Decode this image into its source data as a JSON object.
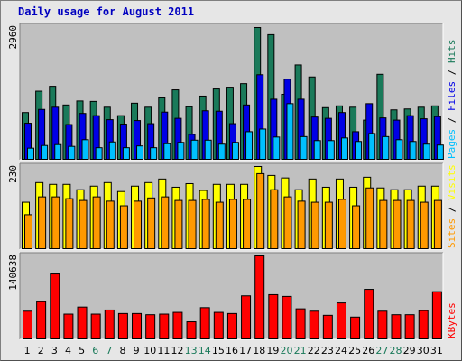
{
  "title": "Daily usage for August 2011",
  "colors": {
    "hits": "#1a7a5a",
    "files": "#0000e6",
    "pages": "#00c0ff",
    "visits": "#ffff00",
    "sites": "#ff9900",
    "kbytes": "#ff0000",
    "weekend_label": "#1a7a5a",
    "weekday_label": "#000000",
    "panel_bg": "#c0c0c0"
  },
  "legend": {
    "hits": "Hits",
    "files": "Files",
    "pages": "Pages",
    "visits": "Visits",
    "sites": "Sites",
    "kbytes": "KBytes",
    "sep": "/"
  },
  "chart_data": {
    "type": "bar",
    "title": "Daily usage for August 2011",
    "categories": [
      "1",
      "2",
      "3",
      "4",
      "5",
      "6",
      "7",
      "8",
      "9",
      "10",
      "11",
      "12",
      "13",
      "14",
      "15",
      "16",
      "17",
      "18",
      "19",
      "20",
      "21",
      "22",
      "23",
      "24",
      "25",
      "26",
      "27",
      "28",
      "29",
      "30",
      "31"
    ],
    "weekend_days": [
      "6",
      "7",
      "13",
      "14",
      "20",
      "21",
      "27",
      "28"
    ],
    "panels": [
      {
        "id": "top",
        "max_label": "2960",
        "ymax": 2960,
        "series": [
          {
            "name": "Hits",
            "values": [
              1050,
              1530,
              1640,
              1220,
              1310,
              1300,
              1170,
              980,
              1260,
              1170,
              1380,
              1560,
              1180,
              1420,
              1580,
              1620,
              1700,
              2960,
              2800,
              1460,
              2120,
              1850,
              1160,
              1200,
              1170,
              880,
              1910,
              1110,
              1130,
              1170,
              1200
            ]
          },
          {
            "name": "Files",
            "values": [
              810,
              1120,
              1170,
              780,
              1030,
              980,
              890,
              790,
              870,
              800,
              1060,
              920,
              560,
              1090,
              1080,
              800,
              1220,
              1900,
              1350,
              1800,
              1350,
              950,
              920,
              1050,
              620,
              1250,
              930,
              880,
              980,
              910,
              960
            ]
          },
          {
            "name": "Pages",
            "values": [
              250,
              310,
              330,
              290,
              440,
              260,
              390,
              260,
              300,
              260,
              350,
              380,
              430,
              430,
              340,
              380,
              620,
              680,
              500,
              1250,
              510,
              420,
              420,
              480,
              400,
              580,
              510,
              440,
              400,
              340,
              320
            ]
          }
        ]
      },
      {
        "id": "middle",
        "max_label": "230",
        "ymax": 230,
        "series": [
          {
            "name": "Visits",
            "values": [
              130,
              185,
              180,
              180,
              165,
              175,
              185,
              160,
              175,
              185,
              195,
              172,
              182,
              163,
              180,
              180,
              180,
              230,
              205,
              198,
              165,
              195,
              172,
              195,
              172,
              200,
              170,
              165,
              165,
              175,
              175
            ]
          },
          {
            "name": "Sites",
            "values": [
              95,
              145,
              145,
              140,
              135,
              145,
              133,
              120,
              133,
              142,
              145,
              135,
              135,
              138,
              130,
              138,
              138,
              210,
              165,
              145,
              133,
              130,
              130,
              138,
              120,
              170,
              135,
              135,
              135,
              130,
              135
            ]
          }
        ]
      },
      {
        "id": "bottom",
        "max_label": "140638",
        "ymax": 140638,
        "series": [
          {
            "name": "KBytes",
            "values": [
              47000,
              63000,
              110000,
              42000,
              54000,
              42000,
              49000,
              43000,
              43000,
              41000,
              42000,
              45000,
              29000,
              53000,
              45000,
              43000,
              73000,
              140638,
              75000,
              72000,
              51000,
              47000,
              40000,
              61000,
              37000,
              84000,
              47000,
              41000,
              41000,
              48000,
              80000
            ]
          }
        ]
      }
    ]
  }
}
